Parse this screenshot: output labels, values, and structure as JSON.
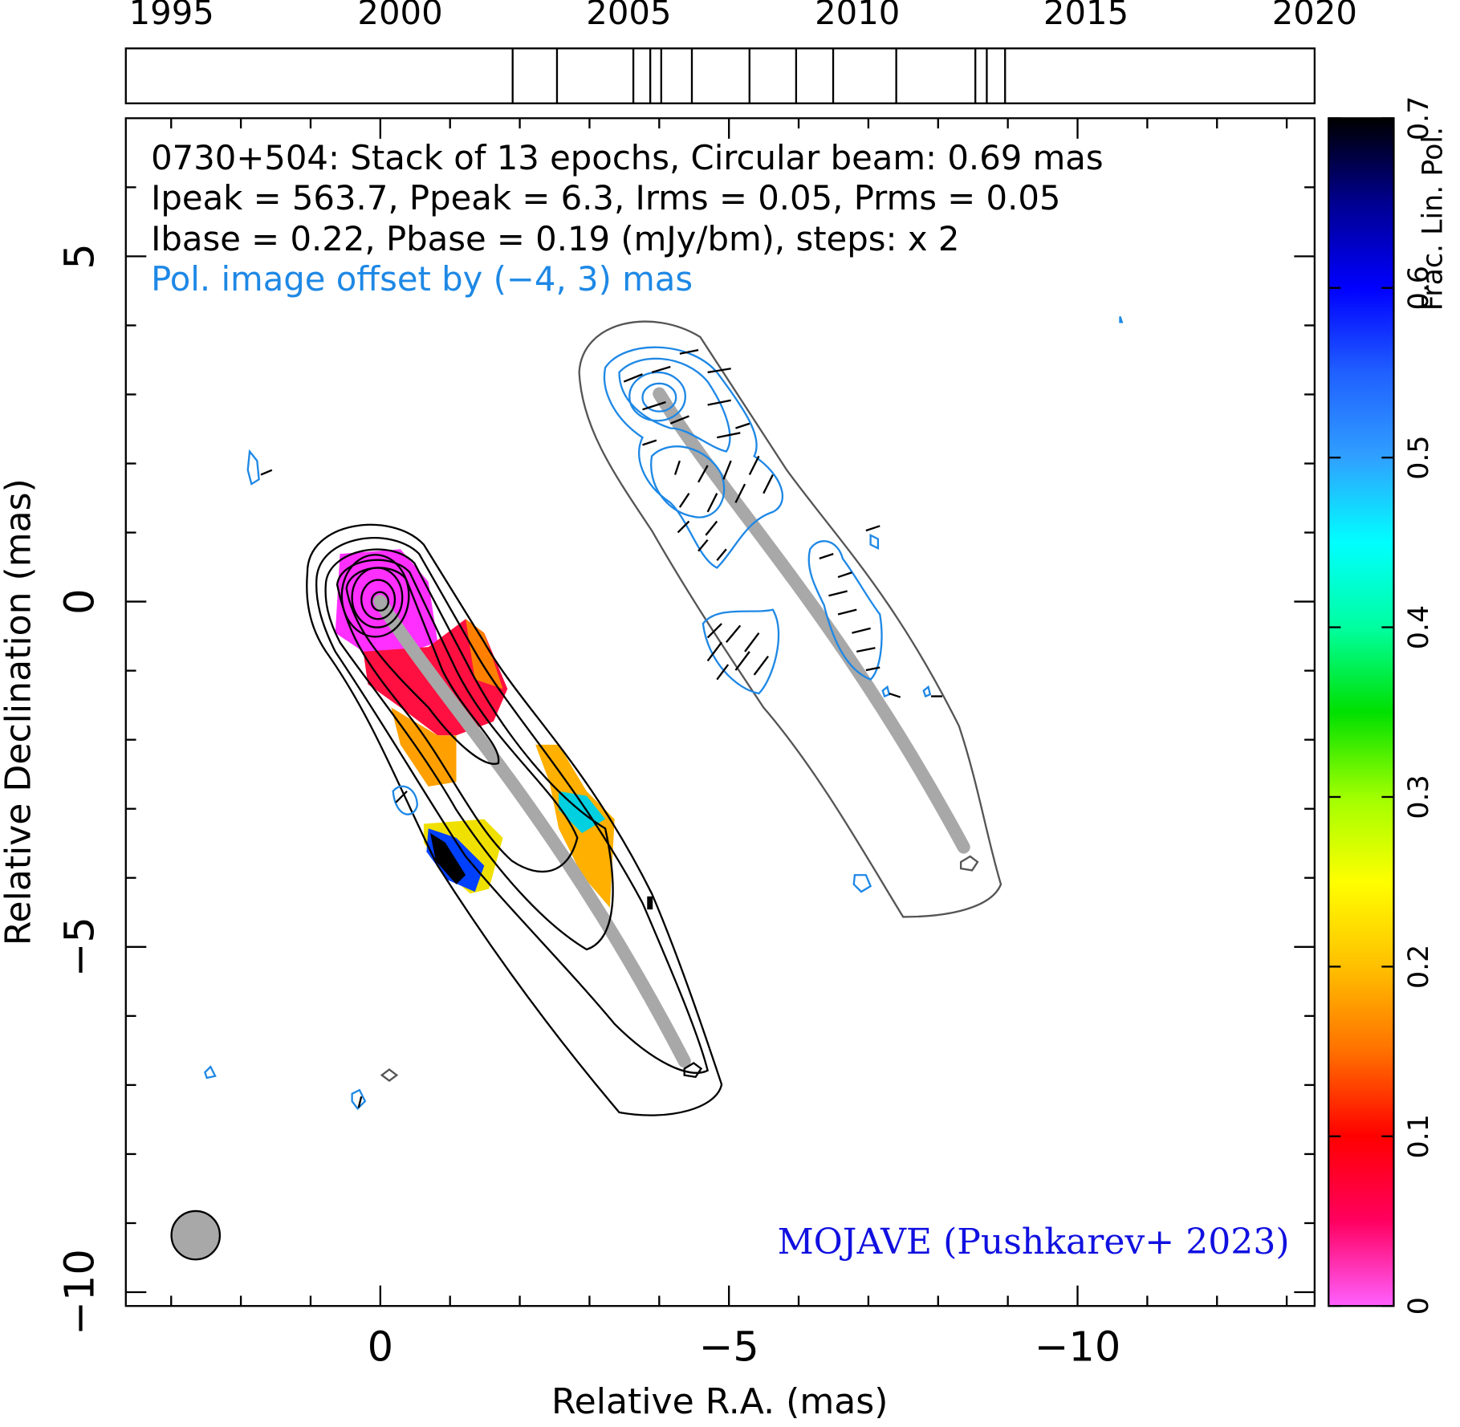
{
  "chart_data": {
    "type": "contour",
    "xlabel": "Relative R.A. (mas)",
    "ylabel": "Relative Declination (mas)",
    "xlim": [
      3.65,
      -13.4
    ],
    "ylim": [
      -10.2,
      7.0
    ],
    "xticks": [
      0,
      {
        "value": -5,
        "label": "−5"
      },
      {
        "value": -10,
        "label": "−10"
      }
    ],
    "yticks": [
      5,
      0,
      {
        "value": -5,
        "label": "−5"
      },
      {
        "value": -10,
        "label": "−10"
      }
    ],
    "xminorticks": [
      3,
      2,
      1,
      -1,
      -2,
      -3,
      -4,
      -6,
      -7,
      -8,
      -9,
      -11,
      -12,
      -13
    ],
    "yminorticks": [
      6,
      4,
      3,
      2,
      1,
      -1,
      -2,
      -3,
      -4,
      -6,
      -7,
      -8,
      -9
    ],
    "annotations": [
      "0730+504: Stack of 13 epochs, Circular beam: 0.69 mas",
      "Ipeak = 563.7, Ppeak = 6.3, Irms = 0.05, Prms = 0.05",
      "Ibase = 0.22, Pbase = 0.19 (mJy/bm), steps: x 2",
      "Pol. image offset by (−4, 3) mas"
    ],
    "credit": "MOJAVE (Pushkarev+ 2023)",
    "timeline": {
      "xlim": [
        1994,
        2020
      ],
      "xticks": [
        1995,
        2000,
        2005,
        2010,
        2015,
        2020
      ],
      "epochs": [
        2002.46,
        2003.43,
        2005.1,
        2005.47,
        2005.71,
        2006.38,
        2007.64,
        2008.66,
        2009.47,
        2010.85,
        2012.58,
        2012.83,
        2013.23
      ]
    },
    "colorbar": {
      "label": "Frac. Lin. Pol.",
      "lim": [
        0,
        0.7
      ],
      "ticks": [
        0,
        0.1,
        0.2,
        0.3,
        0.4,
        0.5,
        0.6,
        0.7
      ],
      "colors": [
        "#ff60ff",
        "#ff0060",
        "#ff0000",
        "#ff7000",
        "#ffc000",
        "#ffff00",
        "#a0ff00",
        "#00e000",
        "#00ffa0",
        "#00ffff",
        "#30a0ff",
        "#2060ff",
        "#0000ff",
        "#000090",
        "#000000"
      ]
    }
  }
}
